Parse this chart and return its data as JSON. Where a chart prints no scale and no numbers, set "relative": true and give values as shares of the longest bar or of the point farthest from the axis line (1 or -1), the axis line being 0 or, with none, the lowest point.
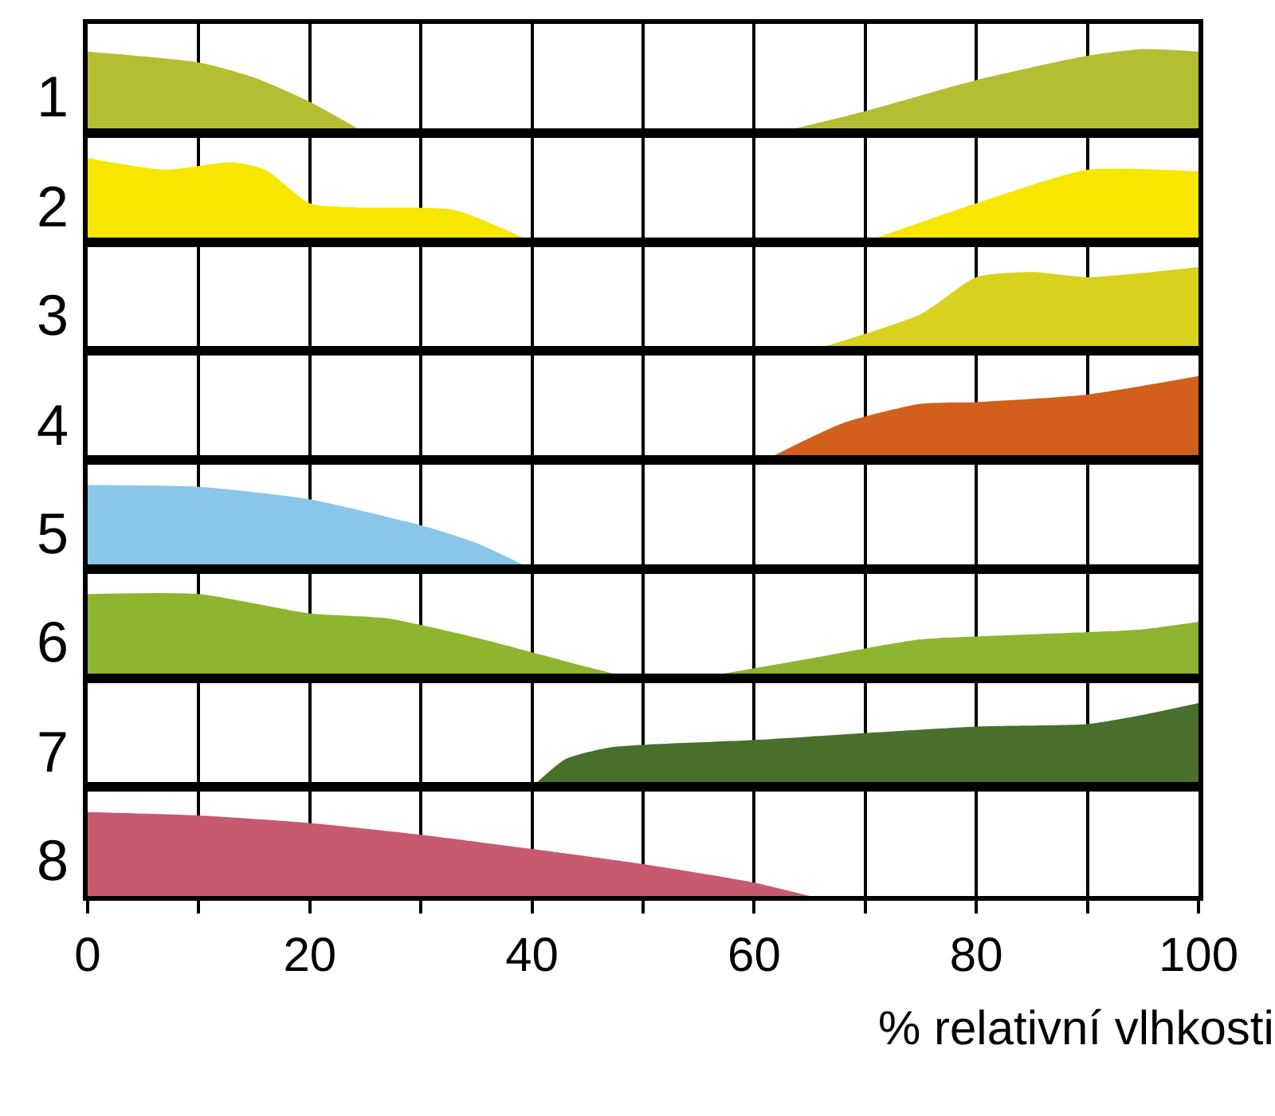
{
  "chart_data": [
    {
      "type": "area",
      "ylabel": "1",
      "relative": true,
      "xlim": [
        0,
        100
      ],
      "xticks": [
        0,
        {
          "value": 10,
          "label": null
        },
        20,
        {
          "value": 30,
          "label": null
        },
        40,
        {
          "value": 50,
          "label": null
        },
        60,
        {
          "value": 70,
          "label": null
        },
        80,
        {
          "value": 90,
          "label": null
        },
        100
      ],
      "grid": "x",
      "tick_labels": false,
      "series": [
        {
          "color": "#b5bd32",
          "x": [
            0,
            10,
            15,
            20,
            25
          ],
          "values": [
            0.97,
            0.84,
            0.66,
            0.37,
            0
          ]
        },
        {
          "color": "#b5bd32",
          "x": [
            62,
            70,
            80,
            90,
            95,
            100
          ],
          "values": [
            0,
            0.26,
            0.63,
            0.92,
            1,
            0.97
          ]
        }
      ]
    },
    {
      "type": "area",
      "ylabel": "2",
      "relative": true,
      "xlim": [
        0,
        100
      ],
      "xticks": [
        0,
        {
          "value": 10,
          "label": null
        },
        20,
        {
          "value": 30,
          "label": null
        },
        40,
        {
          "value": 50,
          "label": null
        },
        60,
        {
          "value": 70,
          "label": null
        },
        80,
        {
          "value": 90,
          "label": null
        },
        100
      ],
      "grid": "x",
      "tick_labels": false,
      "series": [
        {
          "color": "#f7e600",
          "x": [
            0,
            7,
            13,
            16,
            20,
            24,
            33,
            40
          ],
          "values": [
            1,
            0.86,
            0.95,
            0.86,
            0.46,
            0.41,
            0.38,
            0
          ]
        },
        {
          "color": "#f7e600",
          "x": [
            70,
            80,
            90,
            100
          ],
          "values": [
            0,
            0.46,
            0.86,
            0.84
          ]
        }
      ]
    },
    {
      "type": "area",
      "ylabel": "3",
      "relative": true,
      "xlim": [
        0,
        100
      ],
      "xticks": [
        0,
        {
          "value": 10,
          "label": null
        },
        20,
        {
          "value": 30,
          "label": null
        },
        40,
        {
          "value": 50,
          "label": null
        },
        60,
        {
          "value": 70,
          "label": null
        },
        80,
        {
          "value": 90,
          "label": null
        },
        100
      ],
      "grid": "x",
      "tick_labels": false,
      "series": [
        {
          "color": "#d8d11e",
          "x": [
            65,
            75,
            80,
            85,
            90,
            100
          ],
          "values": [
            0,
            0.44,
            0.88,
            0.94,
            0.88,
            1
          ]
        }
      ]
    },
    {
      "type": "area",
      "ylabel": "4",
      "relative": true,
      "xlim": [
        0,
        100
      ],
      "xticks": [
        0,
        {
          "value": 10,
          "label": null
        },
        20,
        {
          "value": 30,
          "label": null
        },
        40,
        {
          "value": 50,
          "label": null
        },
        60,
        {
          "value": 70,
          "label": null
        },
        80,
        {
          "value": 90,
          "label": null
        },
        100
      ],
      "grid": "x",
      "tick_labels": false,
      "series": [
        {
          "color": "#d35f1c",
          "x": [
            61,
            68,
            75,
            80,
            90,
            100
          ],
          "values": [
            0,
            0.44,
            0.67,
            0.69,
            0.78,
            1
          ]
        }
      ]
    },
    {
      "type": "area",
      "ylabel": "5",
      "relative": true,
      "xlim": [
        0,
        100
      ],
      "xticks": [
        0,
        {
          "value": 10,
          "label": null
        },
        20,
        {
          "value": 30,
          "label": null
        },
        40,
        {
          "value": 50,
          "label": null
        },
        60,
        {
          "value": 70,
          "label": null
        },
        80,
        {
          "value": 90,
          "label": null
        },
        100
      ],
      "grid": "x",
      "tick_labels": false,
      "series": [
        {
          "color": "#8ac6e8",
          "x": [
            0,
            10,
            20,
            30,
            35,
            40
          ],
          "values": [
            1,
            0.98,
            0.83,
            0.52,
            0.31,
            0
          ]
        }
      ]
    },
    {
      "type": "area",
      "ylabel": "6",
      "relative": true,
      "xlim": [
        0,
        100
      ],
      "xticks": [
        0,
        {
          "value": 10,
          "label": null
        },
        20,
        {
          "value": 30,
          "label": null
        },
        40,
        {
          "value": 50,
          "label": null
        },
        60,
        {
          "value": 70,
          "label": null
        },
        80,
        {
          "value": 90,
          "label": null
        },
        100
      ],
      "grid": "x",
      "tick_labels": false,
      "series": [
        {
          "color": "#8db52f",
          "x": [
            0,
            10,
            20,
            27,
            35,
            45,
            49
          ],
          "values": [
            1,
            1,
            0.77,
            0.71,
            0.48,
            0.13,
            0
          ]
        },
        {
          "color": "#8db52f",
          "x": [
            55,
            65,
            75,
            85,
            95,
            100
          ],
          "values": [
            0,
            0.23,
            0.46,
            0.52,
            0.58,
            0.67
          ]
        }
      ]
    },
    {
      "type": "area",
      "ylabel": "7",
      "relative": true,
      "xlim": [
        0,
        100
      ],
      "xticks": [
        0,
        {
          "value": 10,
          "label": null
        },
        20,
        {
          "value": 30,
          "label": null
        },
        40,
        {
          "value": 50,
          "label": null
        },
        60,
        {
          "value": 70,
          "label": null
        },
        80,
        {
          "value": 90,
          "label": null
        },
        100
      ],
      "grid": "x",
      "tick_labels": false,
      "series": [
        {
          "color": "#4a6e2b",
          "x": [
            40,
            43,
            47,
            60,
            80,
            90,
            95,
            100
          ],
          "values": [
            0,
            0.33,
            0.47,
            0.56,
            0.72,
            0.75,
            0.86,
            1
          ]
        }
      ]
    },
    {
      "type": "area",
      "ylabel": "8",
      "xlabel": "% relativní vlhkosti",
      "relative": true,
      "xlim": [
        0,
        100
      ],
      "xticks": [
        0,
        {
          "value": 10,
          "label": null
        },
        20,
        {
          "value": 30,
          "label": null
        },
        40,
        {
          "value": 50,
          "label": null
        },
        60,
        {
          "value": 70,
          "label": null
        },
        80,
        {
          "value": 90,
          "label": null
        },
        100
      ],
      "grid": "x",
      "tick_labels": "x",
      "series": [
        {
          "color": "#c75a6e",
          "x": [
            0,
            10,
            20,
            30,
            40,
            50,
            60,
            65
          ],
          "values": [
            1,
            0.96,
            0.87,
            0.73,
            0.56,
            0.38,
            0.16,
            0
          ]
        }
      ]
    }
  ]
}
